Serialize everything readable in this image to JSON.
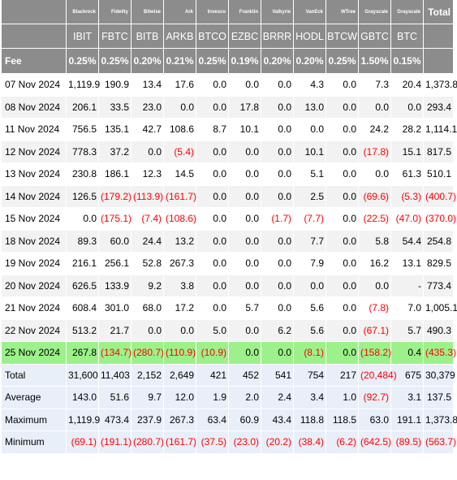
{
  "header": {
    "issuers": [
      "Blackrock",
      "Fidelity",
      "Bitwise",
      "Ark",
      "Invesco",
      "Franklin",
      "Valkyrie",
      "VanEck",
      "WTree",
      "Grayscale",
      "Grayscale"
    ],
    "total_label": "Total",
    "tickers": [
      "IBIT",
      "FBTC",
      "BITB",
      "ARKB",
      "BTCO",
      "EZBC",
      "BRRR",
      "HODL",
      "BTCW",
      "GBTC",
      "BTC"
    ],
    "fee_label": "Fee",
    "fees": [
      "0.25%",
      "0.25%",
      "0.20%",
      "0.21%",
      "0.25%",
      "0.19%",
      "0.20%",
      "0.20%",
      "0.25%",
      "1.50%",
      "0.15%"
    ]
  },
  "rows": [
    {
      "date": "07 Nov 2024",
      "values": [
        "1,119.9",
        "190.9",
        "13.4",
        "17.6",
        "0.0",
        "0.0",
        "0.0",
        "4.3",
        "0.0",
        "7.3",
        "20.4",
        "1,373.8"
      ]
    },
    {
      "date": "08 Nov 2024",
      "values": [
        "206.1",
        "33.5",
        "23.0",
        "0.0",
        "0.0",
        "17.8",
        "0.0",
        "13.0",
        "0.0",
        "0.0",
        "0.0",
        "293.4"
      ]
    },
    {
      "date": "11 Nov 2024",
      "values": [
        "756.5",
        "135.1",
        "42.7",
        "108.6",
        "8.7",
        "10.1",
        "0.0",
        "0.0",
        "0.0",
        "24.2",
        "28.2",
        "1,114.1"
      ]
    },
    {
      "date": "12 Nov 2024",
      "values": [
        "778.3",
        "37.2",
        "0.0",
        "(5.4)",
        "0.0",
        "0.0",
        "0.0",
        "10.1",
        "0.0",
        "(17.8)",
        "15.1",
        "817.5"
      ]
    },
    {
      "date": "13 Nov 2024",
      "values": [
        "230.8",
        "186.1",
        "12.3",
        "14.5",
        "0.0",
        "0.0",
        "0.0",
        "5.1",
        "0.0",
        "0.0",
        "61.3",
        "510.1"
      ]
    },
    {
      "date": "14 Nov 2024",
      "values": [
        "126.5",
        "(179.2)",
        "(113.9)",
        "(161.7)",
        "0.0",
        "0.0",
        "0.0",
        "2.5",
        "0.0",
        "(69.6)",
        "(5.3)",
        "(400.7)"
      ]
    },
    {
      "date": "15 Nov 2024",
      "values": [
        "0.0",
        "(175.1)",
        "(7.4)",
        "(108.6)",
        "0.0",
        "0.0",
        "(1.7)",
        "(7.7)",
        "0.0",
        "(22.5)",
        "(47.0)",
        "(370.0)"
      ]
    },
    {
      "date": "18 Nov 2024",
      "values": [
        "89.3",
        "60.0",
        "24.4",
        "13.2",
        "0.0",
        "0.0",
        "0.0",
        "7.7",
        "0.0",
        "5.8",
        "54.4",
        "254.8"
      ]
    },
    {
      "date": "19 Nov 2024",
      "values": [
        "216.1",
        "256.1",
        "52.8",
        "267.3",
        "0.0",
        "0.0",
        "0.0",
        "7.9",
        "0.0",
        "16.2",
        "13.1",
        "829.5"
      ]
    },
    {
      "date": "20 Nov 2024",
      "values": [
        "626.5",
        "133.9",
        "9.2",
        "3.8",
        "0.0",
        "0.0",
        "0.0",
        "0.0",
        "0.0",
        "0.0",
        "-",
        "773.4"
      ]
    },
    {
      "date": "21 Nov 2024",
      "values": [
        "608.4",
        "301.0",
        "68.0",
        "17.2",
        "0.0",
        "5.7",
        "0.0",
        "5.6",
        "0.0",
        "(7.8)",
        "7.0",
        "1,005.1"
      ]
    },
    {
      "date": "22 Nov 2024",
      "values": [
        "513.2",
        "21.7",
        "0.0",
        "0.0",
        "5.0",
        "0.0",
        "6.2",
        "5.6",
        "0.0",
        "(67.1)",
        "5.7",
        "490.3"
      ]
    },
    {
      "date": "25 Nov 2024",
      "highlight": true,
      "values": [
        "267.8",
        "(134.7)",
        "(280.7)",
        "(110.9)",
        "(10.9)",
        "0.0",
        "0.0",
        "(8.1)",
        "0.0",
        "(158.2)",
        "0.4",
        "(435.3)"
      ]
    }
  ],
  "summary": [
    {
      "label": "Total",
      "values": [
        "31,600",
        "11,403",
        "2,152",
        "2,649",
        "421",
        "452",
        "541",
        "754",
        "217",
        "(20,484)",
        "675",
        "30,379"
      ]
    },
    {
      "label": "Average",
      "values": [
        "143.0",
        "51.6",
        "9.7",
        "12.0",
        "1.9",
        "2.0",
        "2.4",
        "3.4",
        "1.0",
        "(92.7)",
        "3.1",
        "137.5"
      ]
    },
    {
      "label": "Maximum",
      "values": [
        "1,119.9",
        "473.4",
        "237.9",
        "267.3",
        "63.4",
        "60.9",
        "43.4",
        "118.8",
        "118.5",
        "63.0",
        "191.1",
        "1,373.8"
      ]
    },
    {
      "label": "Minimum",
      "values": [
        "(69.1)",
        "(191.1)",
        "(280.7)",
        "(161.7)",
        "(37.5)",
        "(23.0)",
        "(20.2)",
        "(38.4)",
        "(6.2)",
        "(642.5)",
        "(89.5)",
        "(563.7)"
      ]
    }
  ],
  "colors": {
    "header_bg": "#8c8c8c",
    "header_text": "#ffffff",
    "row_stripe": "#f2f2f2",
    "highlight_row": "#9cf18a",
    "summary_bg": "#e8eff8",
    "negative": "#ff0000"
  }
}
